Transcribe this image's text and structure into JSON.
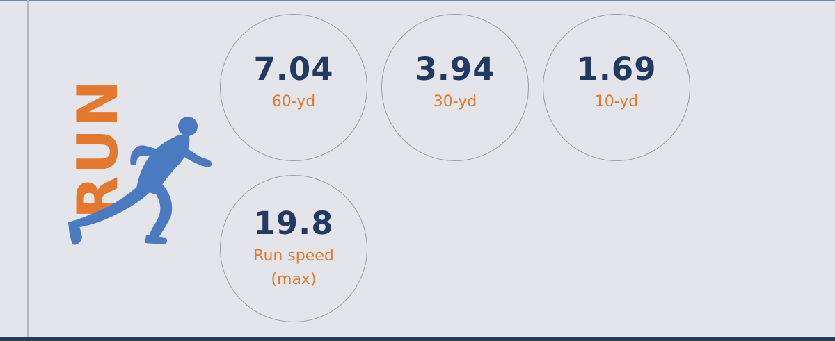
{
  "section": {
    "label": "RUN",
    "icon": "sprinter-icon",
    "colors": {
      "label": "#e4792e",
      "icon": "#4a7bc0",
      "value": "#223a62",
      "circle_border": "#9b9ba0",
      "background": "#e4e5ea",
      "bottom_rule": "#253a5c"
    }
  },
  "stats": [
    {
      "value": "7.04",
      "label": "60-yd"
    },
    {
      "value": "3.94",
      "label": "30-yd"
    },
    {
      "value": "1.69",
      "label": "10-yd"
    },
    {
      "value": "19.8",
      "label": "Run speed\n(max)"
    }
  ]
}
